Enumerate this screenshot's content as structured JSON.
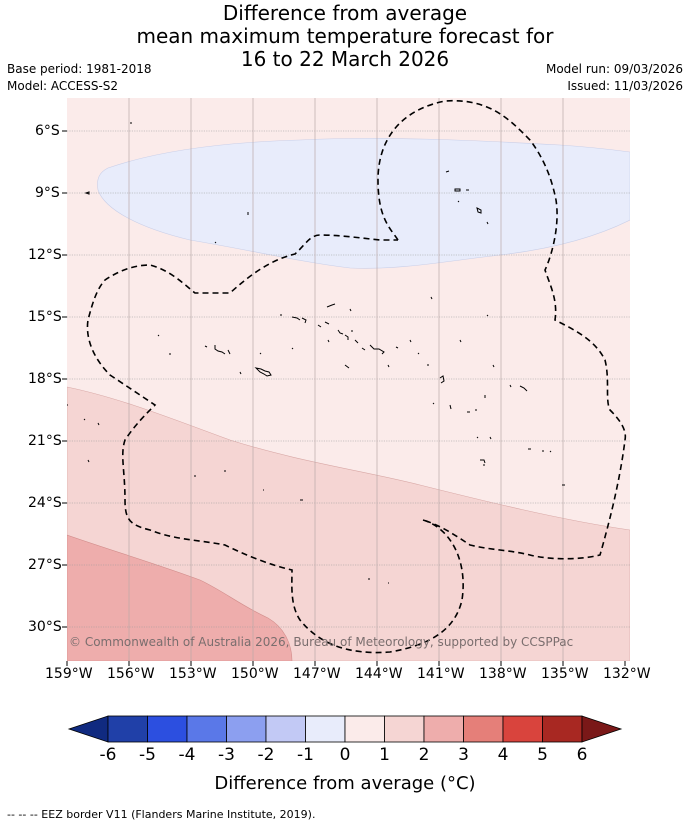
{
  "title": {
    "line1": "Difference from average",
    "line2": "mean maximum temperature forecast for",
    "line3": "16 to 22 March 2026"
  },
  "meta_left": {
    "base_period": "Base period: 1981-2018",
    "model": "Model: ACCESS-S2"
  },
  "meta_right": {
    "model_run": "Model run: 09/03/2026",
    "issued": "Issued: 11/03/2026"
  },
  "map": {
    "lat_labels": [
      "6°S",
      "9°S",
      "12°S",
      "15°S",
      "18°S",
      "21°S",
      "24°S",
      "27°S",
      "30°S"
    ],
    "lon_labels": [
      "159°W",
      "156°W",
      "153°W",
      "150°W",
      "147°W",
      "144°W",
      "141°W",
      "138°W",
      "135°W",
      "132°W"
    ],
    "watermark": "© Commonwealth of Australia 2026, Bureau of Meteorology, supported by CCSPPac",
    "anomaly_colors": {
      "minus1_to_0": "#e8ecfb",
      "zero_to_1": "#fbebea",
      "one_to_2": "#f5d5d3",
      "two_to_3": "#eeadac"
    }
  },
  "colorbar": {
    "ticks": [
      "-6",
      "-5",
      "-4",
      "-3",
      "-2",
      "-1",
      "0",
      "1",
      "2",
      "3",
      "4",
      "5",
      "6"
    ],
    "colors": [
      "#2040a8",
      "#2c4fe0",
      "#5a78e8",
      "#8c9ff0",
      "#c2c9f5",
      "#e8ecfb",
      "#fbebea",
      "#f5d5d3",
      "#eeadac",
      "#e57f79",
      "#d9443d",
      "#a82822"
    ],
    "low_extend_color": "#102a80",
    "high_extend_color": "#7a1818",
    "title": "Difference from average (°C)"
  },
  "footer": "-- -- -- EEZ border V11 (Flanders Marine Institute, 2019)."
}
